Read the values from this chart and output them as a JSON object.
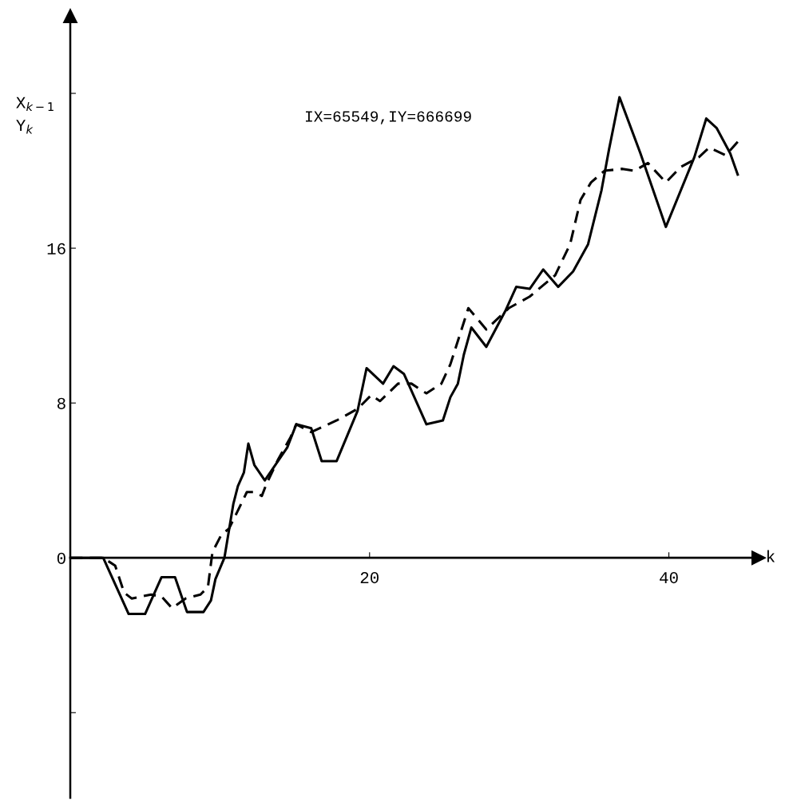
{
  "chart_data": {
    "type": "line",
    "ylabel": "X$_{k−1}$\nY$_{k}$",
    "xlabel": "k",
    "annotations": [
      "IX=65549,IY=666699"
    ],
    "xlim": [
      0,
      46
    ],
    "ylim": [
      -12.4,
      28
    ],
    "xticks": [
      20,
      40
    ],
    "yticks": [
      {
        "value": -8,
        "label": null
      },
      0,
      8,
      16,
      {
        "value": 24,
        "label": null
      }
    ],
    "grid": false,
    "series": [
      {
        "color": "#000000",
        "line_style": "solid",
        "x": [
          0,
          2.2,
          3.9,
          5.0,
          6.1,
          7.0,
          7.8,
          8.9,
          9.4,
          9.7,
          10.3,
          10.9,
          11.2,
          11.6,
          11.9,
          12.3,
          13.0,
          14.5,
          15.1,
          16.1,
          16.8,
          17.8,
          19.2,
          19.8,
          20.9,
          21.6,
          22.3,
          23.8,
          24.9,
          25.4,
          25.9,
          26.3,
          26.8,
          27.8,
          29.1,
          29.8,
          30.7,
          31.6,
          32.6,
          33.6,
          34.6,
          35.5,
          36.0,
          36.7,
          38.1,
          39.8,
          41.7,
          42.5,
          43.2,
          44.1,
          44.6
        ],
        "values": [
          0,
          0,
          -2.9,
          -2.9,
          -1.0,
          -1.0,
          -2.8,
          -2.8,
          -2.2,
          -1.1,
          0,
          2.8,
          3.7,
          4.4,
          5.9,
          4.8,
          4.0,
          5.7,
          6.9,
          6.7,
          5.0,
          5.0,
          7.6,
          9.8,
          9.0,
          9.9,
          9.5,
          6.9,
          7.1,
          8.3,
          9.0,
          10.5,
          11.9,
          10.9,
          12.8,
          14.0,
          13.9,
          14.9,
          14.0,
          14.8,
          16.2,
          19.0,
          21.1,
          23.8,
          20.9,
          17.1,
          20.7,
          22.7,
          22.2,
          20.9,
          19.8
        ]
      },
      {
        "color": "#000000",
        "line_style": "dashed",
        "x": [
          0,
          2.2,
          3.0,
          3.6,
          4.1,
          5.4,
          6.1,
          6.8,
          7.7,
          8.7,
          9.2,
          9.5,
          10.1,
          10.6,
          11.3,
          11.8,
          12.3,
          12.8,
          13.1,
          13.9,
          14.7,
          15.1,
          16.1,
          17.8,
          19.2,
          20.1,
          20.7,
          21.9,
          22.8,
          23.8,
          24.8,
          25.4,
          26.6,
          27.8,
          29.3,
          30.7,
          32.4,
          33.4,
          34.1,
          34.8,
          35.7,
          36.9,
          37.7,
          38.6,
          39.8,
          40.8,
          42.0,
          42.7,
          43.8,
          44.6
        ],
        "values": [
          0,
          0,
          -0.4,
          -1.8,
          -2.1,
          -1.9,
          -2.0,
          -2.6,
          -2.1,
          -1.9,
          -1.5,
          0.3,
          1.2,
          1.5,
          2.6,
          3.4,
          3.4,
          3.2,
          3.8,
          5.1,
          6.2,
          6.9,
          6.5,
          7.1,
          7.7,
          8.4,
          8.1,
          9.0,
          9.0,
          8.5,
          9.0,
          10.0,
          12.9,
          11.8,
          12.9,
          13.5,
          14.6,
          16.2,
          18.5,
          19.4,
          20.0,
          20.1,
          20.0,
          20.4,
          19.4,
          20.2,
          20.7,
          21.2,
          20.8,
          21.5
        ]
      }
    ]
  }
}
